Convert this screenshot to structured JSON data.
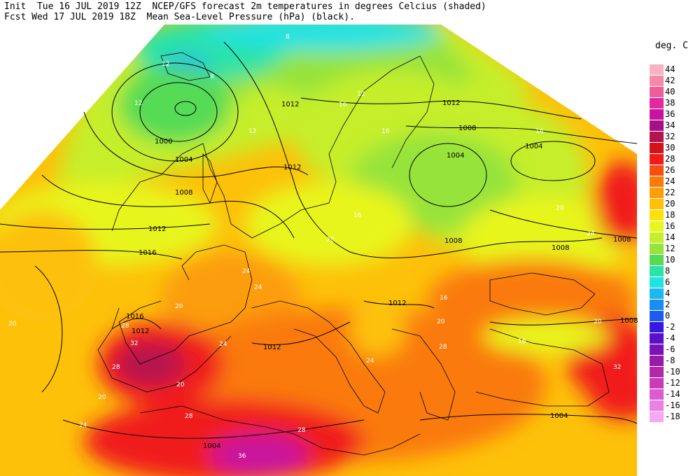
{
  "header": {
    "line1": "Init  Tue 16 JUL 2019 12Z  NCEP/GFS forecast 2m temperatures in degrees Celcius (shaded)",
    "line2": "Fcst Wed 17 JUL 2019 18Z  Mean Sea-Level Pressure (hPa) (black)."
  },
  "legend": {
    "unit": "deg. C",
    "bins": [
      {
        "label": "44",
        "color": "#f7b3c2"
      },
      {
        "label": "42",
        "color": "#f58aa8"
      },
      {
        "label": "40",
        "color": "#ee5f97"
      },
      {
        "label": "38",
        "color": "#e3299f"
      },
      {
        "label": "36",
        "color": "#c8139e"
      },
      {
        "label": "34",
        "color": "#a5108a"
      },
      {
        "label": "32",
        "color": "#b3134f"
      },
      {
        "label": "30",
        "color": "#d41414"
      },
      {
        "label": "28",
        "color": "#f01a1a"
      },
      {
        "label": "26",
        "color": "#f55010"
      },
      {
        "label": "24",
        "color": "#fa7a0a"
      },
      {
        "label": "22",
        "color": "#fc9d0a"
      },
      {
        "label": "20",
        "color": "#fdc10a"
      },
      {
        "label": "18",
        "color": "#fde20a"
      },
      {
        "label": "16",
        "color": "#e8f51e"
      },
      {
        "label": "14",
        "color": "#c6ee2a"
      },
      {
        "label": "12",
        "color": "#96e33a"
      },
      {
        "label": "10",
        "color": "#55db55"
      },
      {
        "label": "8",
        "color": "#2be3a6"
      },
      {
        "label": "6",
        "color": "#22e2e2"
      },
      {
        "label": "4",
        "color": "#1cb9ee"
      },
      {
        "label": "2",
        "color": "#1a8ef0"
      },
      {
        "label": "0",
        "color": "#1a5df0"
      },
      {
        "label": "-2",
        "color": "#3a18e0"
      },
      {
        "label": "-4",
        "color": "#5a10c8"
      },
      {
        "label": "-6",
        "color": "#7a12b8"
      },
      {
        "label": "-8",
        "color": "#9a1aa8"
      },
      {
        "label": "-10",
        "color": "#b228a8"
      },
      {
        "label": "-12",
        "color": "#c83cb8"
      },
      {
        "label": "-14",
        "color": "#dc5cd0"
      },
      {
        "label": "-16",
        "color": "#ec80e4"
      },
      {
        "label": "-18",
        "color": "#f6a8f2"
      }
    ]
  },
  "isobar_labels": [
    "1012",
    "1000",
    "1004",
    "1008",
    "1012",
    "1016",
    "1012",
    "1008",
    "1004",
    "1004",
    "1008",
    "1008",
    "1008",
    "1016",
    "1012",
    "1012",
    "1012",
    "1012",
    "1004",
    "1008",
    "1004"
  ],
  "temp_labels": [
    "12",
    "12",
    "8",
    "8",
    "12",
    "16",
    "16",
    "16",
    "12",
    "20",
    "16",
    "20",
    "24",
    "20",
    "24",
    "20",
    "16",
    "20",
    "24",
    "28",
    "32",
    "28",
    "24",
    "20",
    "16",
    "20",
    "24",
    "28",
    "28",
    "32",
    "36",
    "24",
    "28",
    "20"
  ],
  "colors": {
    "background": "#ffffff",
    "isobar": "#000000",
    "coast": "#000000"
  }
}
